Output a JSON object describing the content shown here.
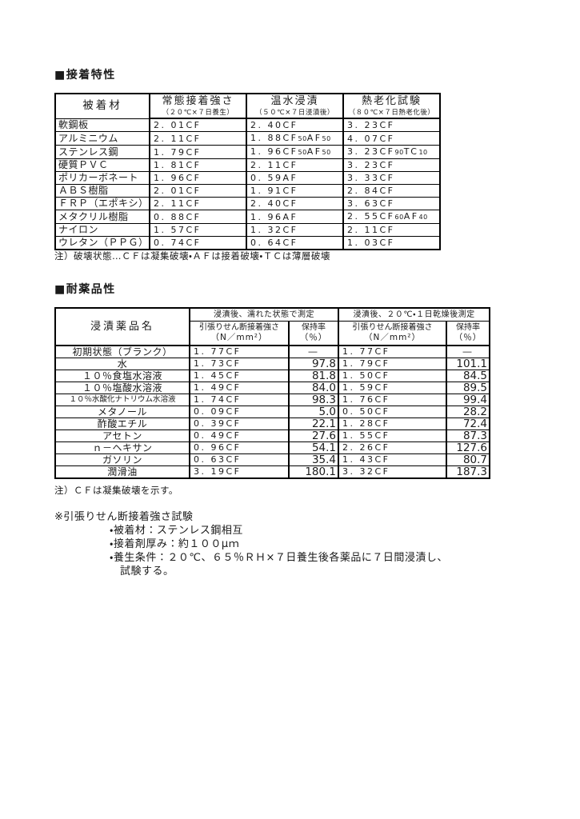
{
  "page": {
    "background": "#ffffff",
    "text_color": "#1a1a1a",
    "border_color": "#000000"
  },
  "adhesion_section": {
    "title": "■接着特性",
    "note": "注）破壊状態…ＣＦは凝集破壊・ＡＦは接着破壊・ＴＣは薄層破壊"
  },
  "adhesion_table": {
    "headers": [
      {
        "name": "被着材",
        "sub": ""
      },
      {
        "name": "常態接着強さ",
        "sub": "（２０℃×７日養生）"
      },
      {
        "name": "温水浸漬",
        "sub": "（５０℃×７日浸漬後）"
      },
      {
        "name": "熱老化試験",
        "sub": "（８０℃×７日熱老化後）"
      }
    ],
    "rows": [
      {
        "material": "軟鋼板",
        "normal": "2. 01CF",
        "warm_water": "2. 40CF",
        "heat_aging": "3. 23CF"
      },
      {
        "material": "アルミニウム",
        "normal": "2. 11CF",
        "warm_water": "1. 88CF{50}AF{50}",
        "heat_aging": "4. 07CF"
      },
      {
        "material": "ステンレス鋼",
        "normal": "1. 79CF",
        "warm_water": "1. 96CF{50}AF{50}",
        "heat_aging": "3. 23CF{90}TC{10}"
      },
      {
        "material": "硬質ＰＶＣ",
        "normal": "1. 81CF",
        "warm_water": "2. 11CF",
        "heat_aging": "3. 23CF"
      },
      {
        "material": "ポリカーボネート",
        "normal": "1. 96CF",
        "warm_water": "0. 59AF",
        "heat_aging": "3. 33CF"
      },
      {
        "material": "ＡＢＳ樹脂",
        "normal": "2. 01CF",
        "warm_water": "1. 91CF",
        "heat_aging": "2. 84CF"
      },
      {
        "material": "ＦＲＰ（エポキシ）",
        "normal": "2. 11CF",
        "warm_water": "2. 40CF",
        "heat_aging": "3. 63CF"
      },
      {
        "material": "メタクリル樹脂",
        "normal": "0. 88CF",
        "warm_water": "1. 96AF",
        "heat_aging": "2. 55CF{60}AF{40}"
      },
      {
        "material": "ナイロン",
        "normal": "1. 57CF",
        "warm_water": "1. 32CF",
        "heat_aging": "2. 11CF"
      },
      {
        "material": "ウレタン（ＰＰＧ）",
        "normal": "0. 74CF",
        "warm_water": "0. 64CF",
        "heat_aging": "1. 03CF"
      }
    ]
  },
  "chemical_section": {
    "title": "■耐薬品性",
    "note": "注）ＣＦは凝集破壊を示す。"
  },
  "chemical_table": {
    "chemical_col_header": "浸漬薬品名",
    "group_headers": [
      "浸漬後、濡れた状態で測定",
      "浸漬後、２０℃・１日乾燥後測定"
    ],
    "sub_headers": {
      "strength": "引張りせん断接着強さ",
      "strength_unit": "（N／mm²）",
      "retention": "保持率",
      "retention_unit": "（％）"
    },
    "rows": [
      {
        "chemical": "初期状態（ブランク）",
        "wet_strength": "1. 77CF",
        "wet_retention": "―",
        "dry_strength": "1. 77CF",
        "dry_retention": "―"
      },
      {
        "chemical": "水",
        "wet_strength": "1. 73CF",
        "wet_retention": "97.8",
        "dry_strength": "1. 79CF",
        "dry_retention": "101.1"
      },
      {
        "chemical": "１０％食塩水溶液",
        "wet_strength": "1. 45CF",
        "wet_retention": "81.8",
        "dry_strength": "1. 50CF",
        "dry_retention": "84.5"
      },
      {
        "chemical": "１０％塩酸水溶液",
        "wet_strength": "1. 49CF",
        "wet_retention": "84.0",
        "dry_strength": "1. 59CF",
        "dry_retention": "89.5"
      },
      {
        "chemical": "１０％水酸化ナトリウム水溶液",
        "wet_strength": "1. 74CF",
        "wet_retention": "98.3",
        "dry_strength": "1. 76CF",
        "dry_retention": "99.4"
      },
      {
        "chemical": "メタノール",
        "wet_strength": "0. 09CF",
        "wet_retention": "5.0",
        "dry_strength": "0. 50CF",
        "dry_retention": "28.2"
      },
      {
        "chemical": "酢酸エチル",
        "wet_strength": "0. 39CF",
        "wet_retention": "22.1",
        "dry_strength": "1. 28CF",
        "dry_retention": "72.4"
      },
      {
        "chemical": "アセトン",
        "wet_strength": "0. 49CF",
        "wet_retention": "27.6",
        "dry_strength": "1. 55CF",
        "dry_retention": "87.3"
      },
      {
        "chemical": "ｎ－ヘキサン",
        "wet_strength": "0. 96CF",
        "wet_retention": "54.1",
        "dry_strength": "2. 26CF",
        "dry_retention": "127.6"
      },
      {
        "chemical": "ガソリン",
        "wet_strength": "0. 63CF",
        "wet_retention": "35.4",
        "dry_strength": "1. 43CF",
        "dry_retention": "80.7"
      },
      {
        "chemical": "潤滑油",
        "wet_strength": "3. 19CF",
        "wet_retention": "180.1",
        "dry_strength": "3. 32CF",
        "dry_retention": "187.3"
      }
    ]
  },
  "test_conditions": {
    "title": "※引張りせん断接着強さ試験",
    "items": [
      "・被着材：ステンレス鋼相互",
      "・接着剤厚み：約１００μｍ",
      "・養生条件：２０℃、６５％ＲＨ×７日養生後各薬品に７日間浸漬し、"
    ],
    "continuation": "試験する。"
  }
}
